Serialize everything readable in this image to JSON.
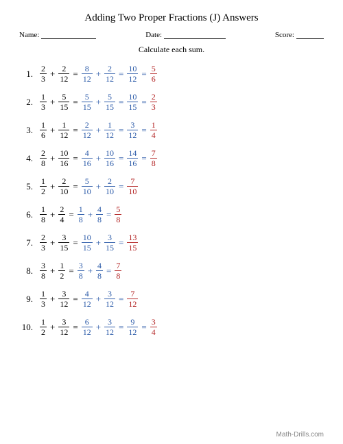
{
  "title": "Adding Two Proper Fractions (J) Answers",
  "labels": {
    "name": "Name:",
    "date": "Date:",
    "score": "Score:"
  },
  "instruction": "Calculate each sum.",
  "footer": "Math-Drills.com",
  "colors": {
    "given": "#000000",
    "work": "#2b5aa8",
    "final": "#b22222",
    "underline": "#000000",
    "footer": "#888888"
  },
  "problems": [
    {
      "n": "1.",
      "a": {
        "t": "2",
        "b": "3"
      },
      "b": {
        "t": "2",
        "b": "12"
      },
      "c": {
        "t": "8",
        "b": "12"
      },
      "d": {
        "t": "2",
        "b": "12"
      },
      "sum": {
        "t": "10",
        "b": "12"
      },
      "final": {
        "t": "5",
        "b": "6"
      }
    },
    {
      "n": "2.",
      "a": {
        "t": "1",
        "b": "3"
      },
      "b": {
        "t": "5",
        "b": "15"
      },
      "c": {
        "t": "5",
        "b": "15"
      },
      "d": {
        "t": "5",
        "b": "15"
      },
      "sum": {
        "t": "10",
        "b": "15"
      },
      "final": {
        "t": "2",
        "b": "3"
      }
    },
    {
      "n": "3.",
      "a": {
        "t": "1",
        "b": "6"
      },
      "b": {
        "t": "1",
        "b": "12"
      },
      "c": {
        "t": "2",
        "b": "12"
      },
      "d": {
        "t": "1",
        "b": "12"
      },
      "sum": {
        "t": "3",
        "b": "12"
      },
      "final": {
        "t": "1",
        "b": "4"
      }
    },
    {
      "n": "4.",
      "a": {
        "t": "2",
        "b": "8"
      },
      "b": {
        "t": "10",
        "b": "16"
      },
      "c": {
        "t": "4",
        "b": "16"
      },
      "d": {
        "t": "10",
        "b": "16"
      },
      "sum": {
        "t": "14",
        "b": "16"
      },
      "final": {
        "t": "7",
        "b": "8"
      }
    },
    {
      "n": "5.",
      "a": {
        "t": "1",
        "b": "2"
      },
      "b": {
        "t": "2",
        "b": "10"
      },
      "c": {
        "t": "5",
        "b": "10"
      },
      "d": {
        "t": "2",
        "b": "10"
      },
      "sum": {
        "t": "7",
        "b": "10"
      },
      "final": null
    },
    {
      "n": "6.",
      "a": {
        "t": "1",
        "b": "8"
      },
      "b": {
        "t": "2",
        "b": "4"
      },
      "c": {
        "t": "1",
        "b": "8"
      },
      "d": {
        "t": "4",
        "b": "8"
      },
      "sum": {
        "t": "5",
        "b": "8"
      },
      "final": null
    },
    {
      "n": "7.",
      "a": {
        "t": "2",
        "b": "3"
      },
      "b": {
        "t": "3",
        "b": "15"
      },
      "c": {
        "t": "10",
        "b": "15"
      },
      "d": {
        "t": "3",
        "b": "15"
      },
      "sum": {
        "t": "13",
        "b": "15"
      },
      "final": null
    },
    {
      "n": "8.",
      "a": {
        "t": "3",
        "b": "8"
      },
      "b": {
        "t": "1",
        "b": "2"
      },
      "c": {
        "t": "3",
        "b": "8"
      },
      "d": {
        "t": "4",
        "b": "8"
      },
      "sum": {
        "t": "7",
        "b": "8"
      },
      "final": null
    },
    {
      "n": "9.",
      "a": {
        "t": "1",
        "b": "3"
      },
      "b": {
        "t": "3",
        "b": "12"
      },
      "c": {
        "t": "4",
        "b": "12"
      },
      "d": {
        "t": "3",
        "b": "12"
      },
      "sum": {
        "t": "7",
        "b": "12"
      },
      "final": null
    },
    {
      "n": "10.",
      "a": {
        "t": "1",
        "b": "2"
      },
      "b": {
        "t": "3",
        "b": "12"
      },
      "c": {
        "t": "6",
        "b": "12"
      },
      "d": {
        "t": "3",
        "b": "12"
      },
      "sum": {
        "t": "9",
        "b": "12"
      },
      "final": {
        "t": "3",
        "b": "4"
      }
    }
  ]
}
